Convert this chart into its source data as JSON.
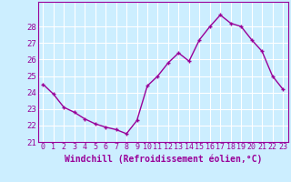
{
  "hours": [
    0,
    1,
    2,
    3,
    4,
    5,
    6,
    7,
    8,
    9,
    10,
    11,
    12,
    13,
    14,
    15,
    16,
    17,
    18,
    19,
    20,
    21,
    22,
    23
  ],
  "values": [
    24.5,
    23.9,
    23.1,
    22.8,
    22.4,
    22.1,
    21.9,
    21.75,
    21.5,
    22.3,
    24.4,
    25.0,
    25.8,
    26.4,
    25.9,
    27.2,
    28.0,
    28.7,
    28.2,
    28.0,
    27.2,
    26.5,
    25.0,
    24.2
  ],
  "line_color": "#990099",
  "marker": "+",
  "bg_color": "#cceeff",
  "grid_color": "#ffffff",
  "xlabel": "Windchill (Refroidissement éolien,°C)",
  "xlabel_color": "#990099",
  "tick_color": "#990099",
  "ylim_min": 21,
  "ylim_max": 29,
  "yticks": [
    21,
    22,
    23,
    24,
    25,
    26,
    27,
    28
  ],
  "marker_size": 3,
  "linewidth": 1.0,
  "font_size": 6.5,
  "xlabel_fontsize": 7.0
}
